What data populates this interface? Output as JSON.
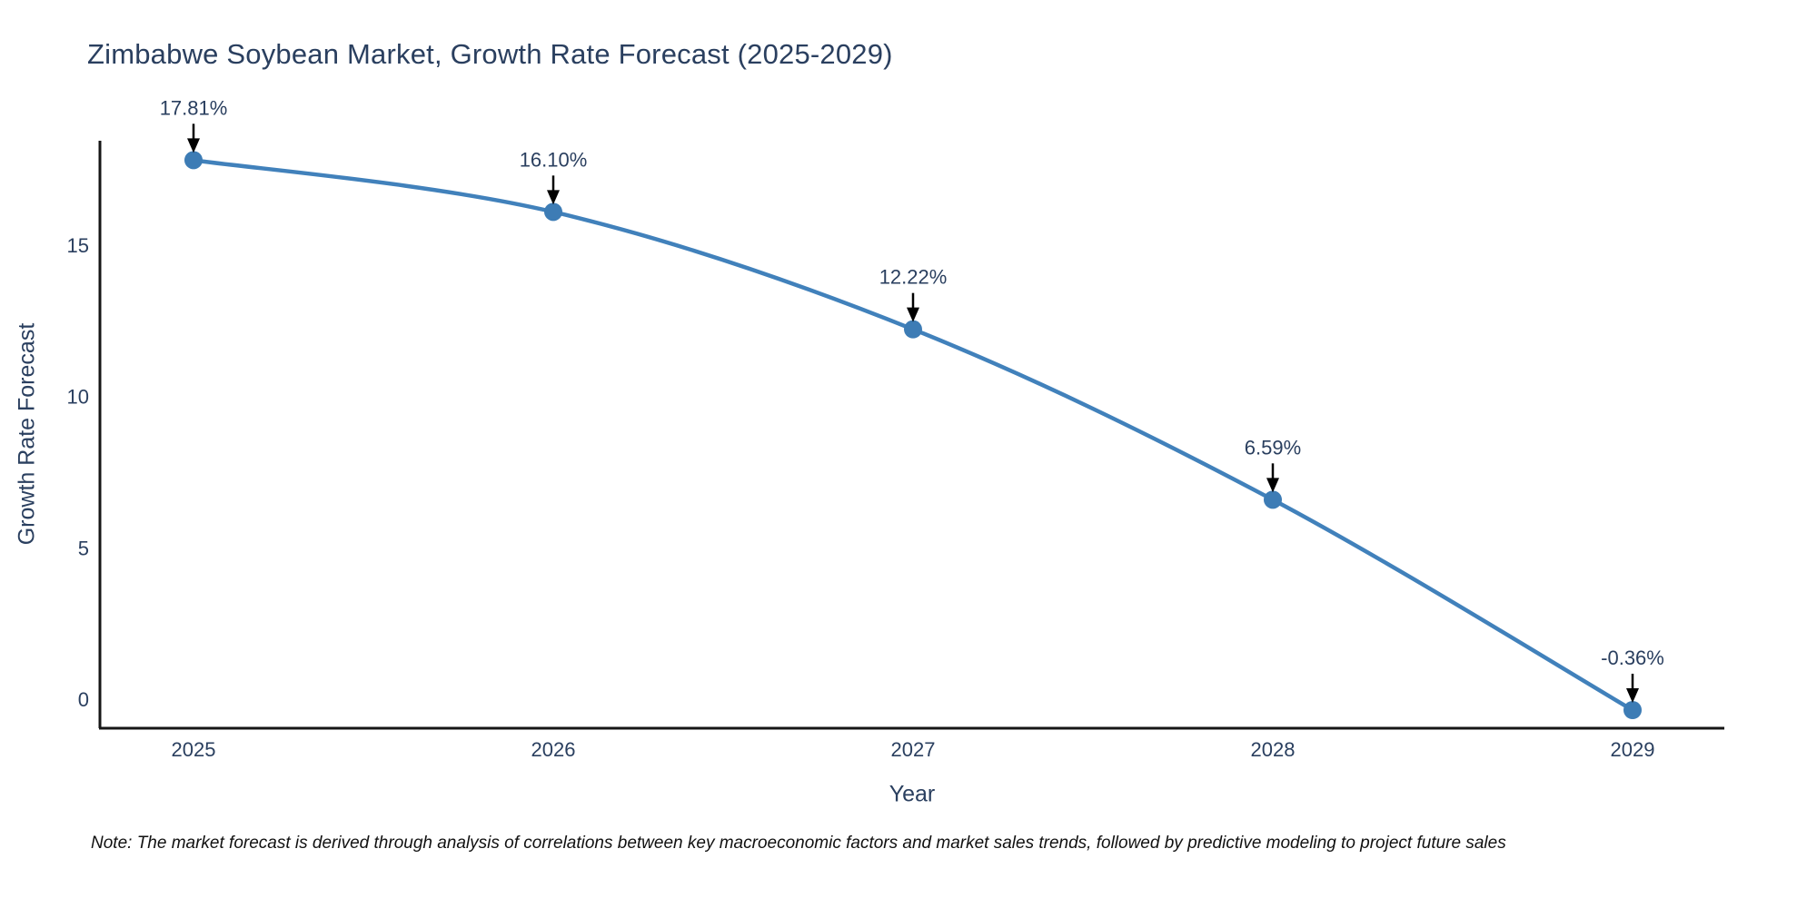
{
  "title": "Zimbabwe Soybean Market, Growth Rate Forecast (2025-2029)",
  "note": "Note: The market forecast is derived through analysis of correlations between key macroeconomic factors and market sales trends, followed by predictive modeling to project future sales",
  "chart_data": {
    "type": "line",
    "title": "Zimbabwe Soybean Market, Growth Rate Forecast (2025-2029)",
    "xlabel": "Year",
    "ylabel": "Growth Rate Forecast",
    "x": [
      2025,
      2026,
      2027,
      2028,
      2029
    ],
    "x_tick_labels": [
      "2025",
      "2026",
      "2027",
      "2028",
      "2029"
    ],
    "series": [
      {
        "name": "Growth Rate Forecast",
        "values": [
          17.81,
          16.1,
          12.22,
          6.59,
          -0.36
        ]
      }
    ],
    "point_labels": [
      "17.81%",
      "16.10%",
      "12.22%",
      "6.59%",
      "-0.36%"
    ],
    "yticks": [
      0,
      5,
      10,
      15
    ],
    "ytick_labels": [
      "0",
      "5",
      "10",
      "15"
    ],
    "ylim": [
      -1.0,
      19.4
    ],
    "line_shape": "spline",
    "grid": false,
    "legend": null,
    "annotation_arrows": true,
    "colors": {
      "line": "#4181bb",
      "marker": "#3d7cb5",
      "text": "#2a3f5f",
      "axis": "#161616",
      "arrow": "#000000",
      "background": "#ffffff"
    }
  }
}
